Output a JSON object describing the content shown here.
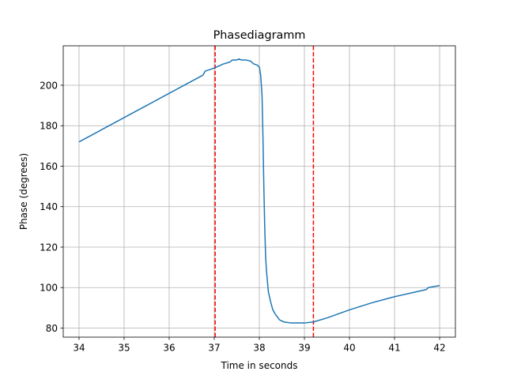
{
  "chart_data": {
    "type": "line",
    "title": "Phasediagramm",
    "xlabel": "Time in seconds",
    "ylabel": "Phase (degrees)",
    "xlim": [
      33.65,
      42.35
    ],
    "ylim": [
      75.5,
      219.5
    ],
    "xticks": [
      34,
      35,
      36,
      37,
      38,
      39,
      40,
      41,
      42
    ],
    "yticks": [
      80,
      100,
      120,
      140,
      160,
      180,
      200
    ],
    "grid": true,
    "colors": {
      "series": "#1f77b4",
      "vlines": "#ff0000"
    },
    "series": [
      {
        "x": [
          34.0,
          34.5,
          35.0,
          35.5,
          36.0,
          36.5,
          36.75,
          36.8,
          37.0,
          37.2,
          37.35,
          37.4,
          37.5,
          37.55,
          37.6,
          37.7,
          37.8,
          37.88,
          37.95,
          38.0,
          38.03,
          38.06,
          38.08,
          38.1,
          38.12,
          38.14,
          38.16,
          38.18,
          38.2,
          38.25,
          38.3,
          38.35,
          38.45,
          38.55,
          38.7,
          38.85,
          39.0,
          39.2,
          39.5,
          40.0,
          40.5,
          41.0,
          41.4,
          41.7,
          41.75,
          42.0
        ],
        "y": [
          172,
          178,
          184,
          190,
          196,
          202,
          205,
          207,
          208.5,
          210.5,
          211.5,
          212.5,
          212.5,
          213,
          212.5,
          212.5,
          212,
          210.5,
          210,
          209,
          205,
          195,
          175,
          150,
          130,
          115,
          108,
          103,
          98,
          93,
          89,
          87,
          84,
          83,
          82.5,
          82.5,
          82.5,
          83,
          85,
          89,
          92.5,
          95.5,
          97.5,
          99,
          100,
          101
        ]
      }
    ],
    "vertical_lines": [
      {
        "x": 37.02,
        "style": "dashed"
      },
      {
        "x": 39.2,
        "style": "dashed"
      }
    ]
  }
}
